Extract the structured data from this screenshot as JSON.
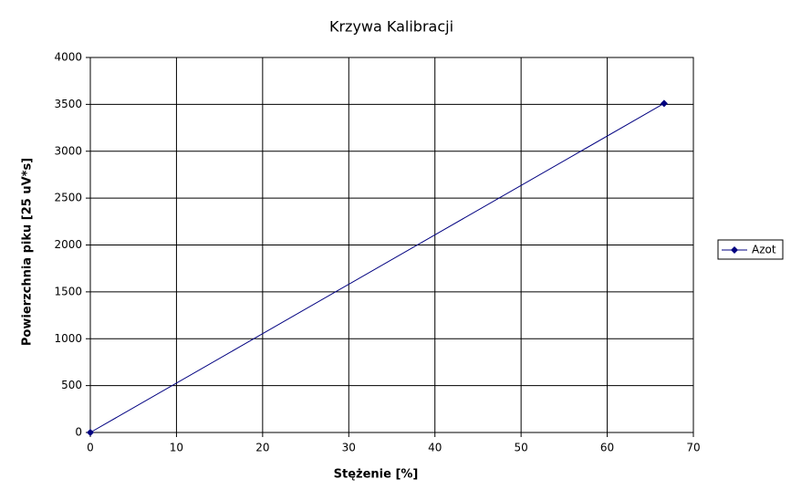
{
  "chart_data": {
    "type": "line",
    "title": "Krzywa Kalibracji",
    "x_label": "Stężenie [%]",
    "y_label": "Powierzchnia piku [25 uV*s]",
    "x": [
      0,
      66.6
    ],
    "series": [
      {
        "name": "Azot",
        "color": "#000080",
        "values": [
          0,
          3510
        ]
      }
    ],
    "xlim": [
      0,
      70
    ],
    "xticks": [
      0,
      10,
      20,
      30,
      40,
      50,
      60,
      70
    ],
    "ylim": [
      0,
      4000
    ],
    "yticks": [
      0,
      500,
      1000,
      1500,
      2000,
      2500,
      3000,
      3500,
      4000
    ],
    "grid": true,
    "legend": "right"
  }
}
